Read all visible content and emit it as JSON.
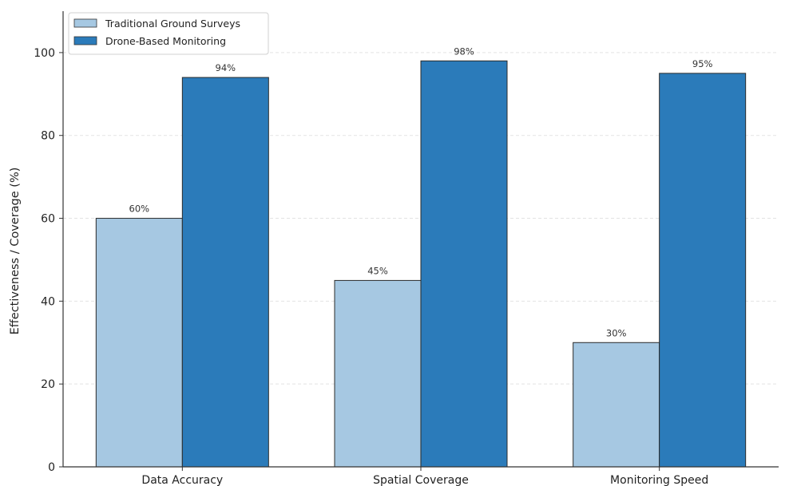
{
  "chart_data": {
    "type": "bar",
    "categories": [
      "Data Accuracy",
      "Spatial Coverage",
      "Monitoring Speed"
    ],
    "series": [
      {
        "name": "Traditional Ground Surveys",
        "values": [
          60,
          45,
          30
        ],
        "labels": [
          "60%",
          "45%",
          "30%"
        ],
        "color": "#a6c8e2"
      },
      {
        "name": "Drone-Based Monitoring",
        "values": [
          94,
          98,
          95
        ],
        "labels": [
          "94%",
          "98%",
          "95%"
        ],
        "color": "#2b7bba"
      }
    ],
    "title": "",
    "xlabel": "",
    "ylabel": "Effectiveness / Coverage (%)",
    "ylim": [
      0,
      110
    ],
    "yticks": [
      0,
      20,
      40,
      60,
      80,
      100
    ],
    "grid": "horizontal-dashed",
    "legend_position": "top-left"
  }
}
